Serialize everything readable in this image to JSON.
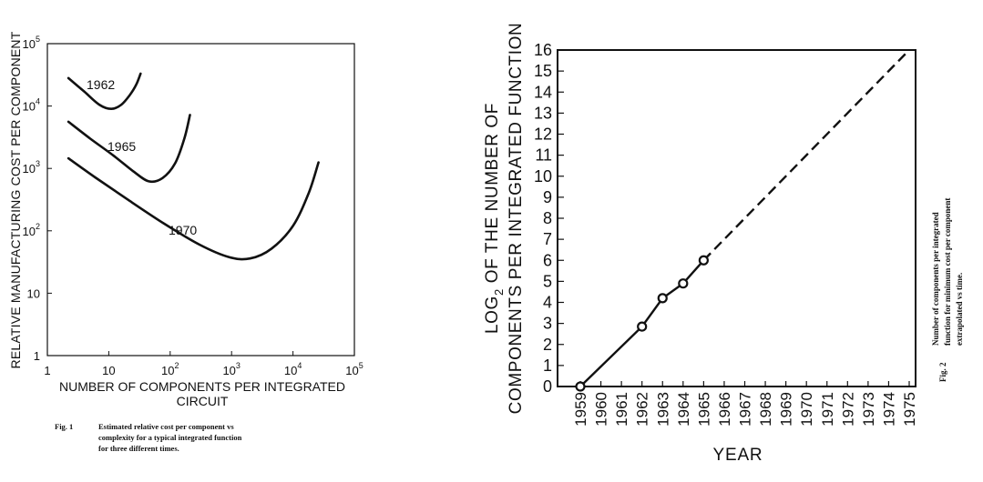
{
  "chart_data": [
    {
      "type": "line",
      "figure_label": "Fig. 1",
      "caption": [
        "Estimated relative cost per component vs",
        "complexity for a typical integrated function",
        "for three different times."
      ],
      "xlabel": [
        "NUMBER OF COMPONENTS PER INTEGRATED",
        "CIRCUIT"
      ],
      "ylabel": "RELATIVE MANUFACTURING COST PER COMPONENT",
      "x_scale": "log",
      "y_scale": "log",
      "xlim": [
        1,
        100000
      ],
      "ylim": [
        1,
        100000
      ],
      "x_ticks": [
        {
          "value": 1,
          "base": "1",
          "exp": ""
        },
        {
          "value": 10,
          "base": "10",
          "exp": ""
        },
        {
          "value": 100,
          "base": "10",
          "exp": "2"
        },
        {
          "value": 1000,
          "base": "10",
          "exp": "3"
        },
        {
          "value": 10000,
          "base": "10",
          "exp": "4"
        },
        {
          "value": 100000,
          "base": "10",
          "exp": "5"
        }
      ],
      "y_ticks": [
        {
          "value": 1,
          "base": "1",
          "exp": ""
        },
        {
          "value": 10,
          "base": "10",
          "exp": ""
        },
        {
          "value": 100,
          "base": "10",
          "exp": "2"
        },
        {
          "value": 1000,
          "base": "10",
          "exp": "3"
        },
        {
          "value": 10000,
          "base": "10",
          "exp": "4"
        },
        {
          "value": 100000,
          "base": "10",
          "exp": "5"
        }
      ],
      "series": [
        {
          "name": "1962",
          "points": [
            [
              2.2,
              28000
            ],
            [
              4,
              17000
            ],
            [
              7,
              10500
            ],
            [
              11,
              9000
            ],
            [
              16,
              10500
            ],
            [
              22,
              15000
            ],
            [
              28,
              22000
            ],
            [
              33,
              33000
            ]
          ]
        },
        {
          "name": "1965",
          "points": [
            [
              2.2,
              5600
            ],
            [
              5,
              3000
            ],
            [
              12,
              1600
            ],
            [
              25,
              900
            ],
            [
              45,
              620
            ],
            [
              75,
              700
            ],
            [
              120,
              1200
            ],
            [
              170,
              3000
            ],
            [
              210,
              7200
            ]
          ]
        },
        {
          "name": "1970",
          "points": [
            [
              2.2,
              1450
            ],
            [
              6,
              720
            ],
            [
              20,
              320
            ],
            [
              80,
              130
            ],
            [
              300,
              60
            ],
            [
              900,
              38
            ],
            [
              2000,
              36
            ],
            [
              4500,
              52
            ],
            [
              10000,
              120
            ],
            [
              18000,
              400
            ],
            [
              26000,
              1250
            ]
          ]
        }
      ],
      "annotations": [
        "1962",
        "1965",
        "1970"
      ]
    },
    {
      "type": "line",
      "figure_label": "Fig. 2",
      "caption": [
        "Number of components per integrated",
        "function for minimum cost per component",
        "extrapolated vs time."
      ],
      "xlabel": "YEAR",
      "ylabel_line1": "LOG",
      "ylabel_sub": "2",
      "ylabel_line1_rest": "OF THE NUMBER OF",
      "ylabel_line2": "COMPONENTS PER INTEGRATED FUNCTION",
      "xlim": [
        1959,
        1975
      ],
      "ylim": [
        0,
        16
      ],
      "x_ticks": [
        "1959",
        "1960",
        "1961",
        "1962",
        "1963",
        "1964",
        "1965",
        "1966",
        "1967",
        "1968",
        "1969",
        "1970",
        "1971",
        "1972",
        "1973",
        "1974",
        "1975"
      ],
      "y_ticks": [
        "0",
        "1",
        "2",
        "3",
        "4",
        "5",
        "6",
        "7",
        "8",
        "9",
        "10",
        "11",
        "12",
        "13",
        "14",
        "15",
        "16"
      ],
      "measured": {
        "x": [
          1959,
          1962,
          1963,
          1964,
          1965
        ],
        "y": [
          0,
          2.85,
          4.2,
          4.9,
          6
        ]
      },
      "extrapolated": {
        "x": [
          1965,
          1975
        ],
        "y": [
          6,
          16
        ]
      }
    }
  ]
}
